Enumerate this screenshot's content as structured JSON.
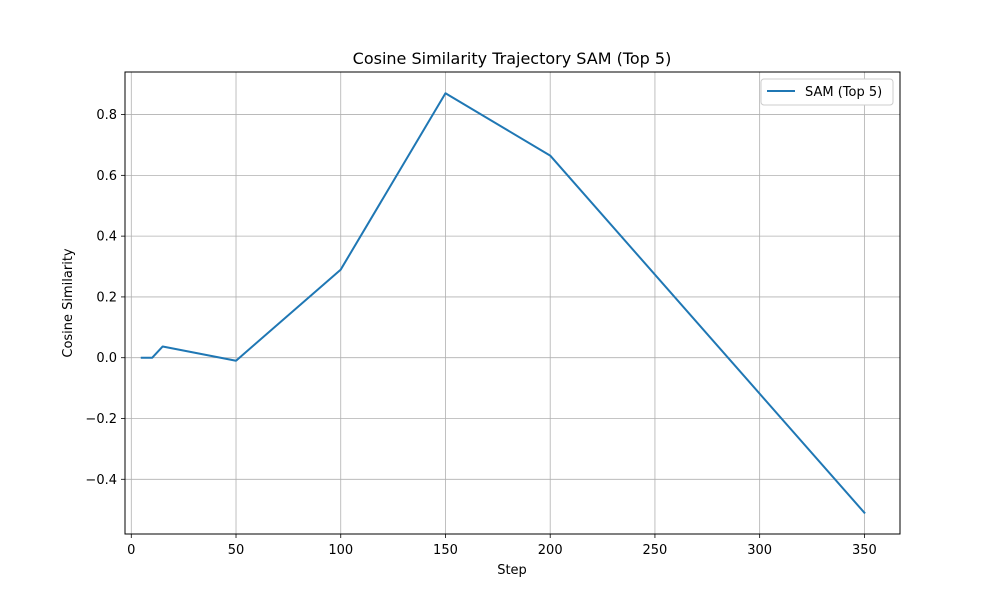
{
  "chart_data": {
    "type": "line",
    "title": "Cosine Similarity Trajectory SAM (Top 5)",
    "xlabel": "Step",
    "ylabel": "Cosine Similarity",
    "xlim": [
      -3,
      367
    ],
    "ylim": [
      -0.58,
      0.94
    ],
    "xticks": [
      0,
      50,
      100,
      150,
      200,
      250,
      300,
      350
    ],
    "xtick_labels": [
      "0",
      "50",
      "100",
      "150",
      "200",
      "250",
      "300",
      "350"
    ],
    "yticks": [
      -0.4,
      -0.2,
      0.0,
      0.2,
      0.4,
      0.6,
      0.8
    ],
    "ytick_labels": [
      "−0.4",
      "−0.2",
      "0.0",
      "0.2",
      "0.4",
      "0.6",
      "0.8"
    ],
    "grid": true,
    "legend": {
      "position": "top-right"
    },
    "series": [
      {
        "name": "SAM (Top 5)",
        "color": "#1f77b4",
        "x": [
          5,
          10,
          15,
          50,
          100,
          150,
          200,
          350
        ],
        "y": [
          0.0,
          0.0,
          0.037,
          -0.01,
          0.29,
          0.87,
          0.665,
          -0.51
        ]
      }
    ]
  }
}
